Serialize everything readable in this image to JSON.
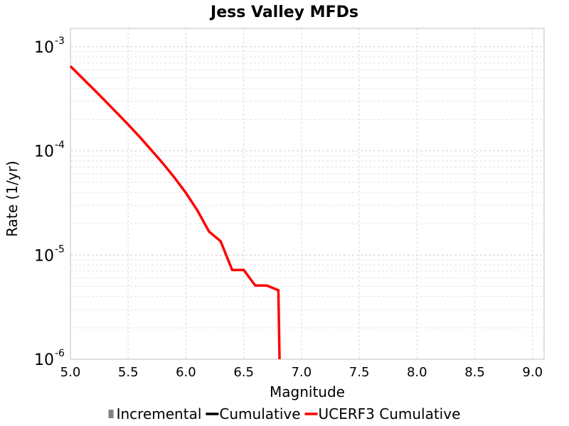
{
  "chart_data": {
    "type": "line",
    "title": "Jess Valley MFDs",
    "xlabel": "Magnitude",
    "ylabel": "Rate (1/yr)",
    "xlim": [
      5.0,
      9.1
    ],
    "ylim": [
      1e-06,
      0.0015
    ],
    "yscale": "log",
    "grid": true,
    "legend_position": "bottom",
    "x_ticks": [
      "5.0",
      "5.5",
      "6.0",
      "6.5",
      "7.0",
      "7.5",
      "8.0",
      "8.5",
      "9.0"
    ],
    "y_ticks": [
      {
        "base": "10",
        "exp": "-3",
        "value": 0.001
      },
      {
        "base": "10",
        "exp": "-4",
        "value": 0.0001
      },
      {
        "base": "10",
        "exp": "-5",
        "value": 1e-05
      },
      {
        "base": "10",
        "exp": "-6",
        "value": 1e-06
      }
    ],
    "legend": [
      {
        "label": "Incremental",
        "color": "#808080",
        "marker": "square"
      },
      {
        "label": "Cumulative",
        "color": "#000000",
        "marker": "line"
      },
      {
        "label": "UCERF3 Cumulative",
        "color": "#ff0000",
        "marker": "line"
      }
    ],
    "series": [
      {
        "name": "UCERF3 Cumulative",
        "color": "#ff0000",
        "points": [
          [
            5.0,
            0.00065
          ],
          [
            5.1,
            0.000505
          ],
          [
            5.2,
            0.000392
          ],
          [
            5.3,
            0.000303
          ],
          [
            5.4,
            0.000233
          ],
          [
            5.5,
            0.000179
          ],
          [
            5.6,
            0.000136
          ],
          [
            5.7,
            0.000102
          ],
          [
            5.8,
            7.61e-05
          ],
          [
            5.9,
            5.55e-05
          ],
          [
            6.0,
            3.95e-05
          ],
          [
            6.1,
            2.67e-05
          ],
          [
            6.2,
            1.68e-05
          ],
          [
            6.3,
            1.36e-05
          ],
          [
            6.4,
            7.2e-06
          ],
          [
            6.5,
            7.2e-06
          ],
          [
            6.6,
            5.1e-06
          ],
          [
            6.7,
            5.1e-06
          ],
          [
            6.8,
            4.6e-06
          ],
          [
            6.81,
            1e-06
          ]
        ]
      }
    ]
  }
}
